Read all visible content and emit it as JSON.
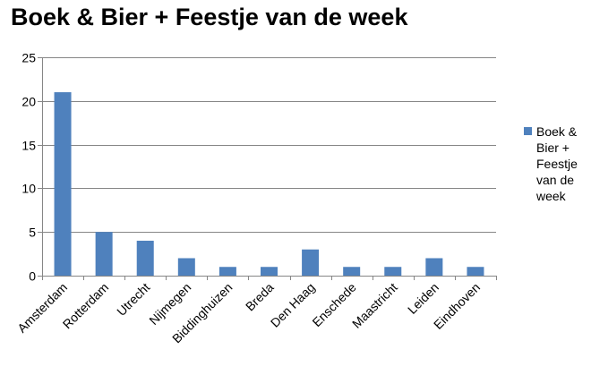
{
  "chart_data": {
    "type": "bar",
    "title": "Boek & Bier + Feestje van de week",
    "categories": [
      "Amsterdam",
      "Rotterdam",
      "Utrecht",
      "Nijmegen",
      "Biddinghuizen",
      "Breda",
      "Den Haag",
      "Enschede",
      "Maastricht",
      "Leiden",
      "Eindhoven"
    ],
    "series": [
      {
        "name": "Boek & Bier + Feestje van de week",
        "values": [
          21,
          5,
          4,
          2,
          1,
          1,
          3,
          1,
          1,
          2,
          1
        ],
        "color": "#4f81bd"
      }
    ],
    "xlabel": "",
    "ylabel": "",
    "ylim": [
      0,
      25
    ],
    "yticks": [
      "0",
      "5",
      "10",
      "15",
      "20",
      "25"
    ],
    "grid": true,
    "legend_position": "right"
  }
}
